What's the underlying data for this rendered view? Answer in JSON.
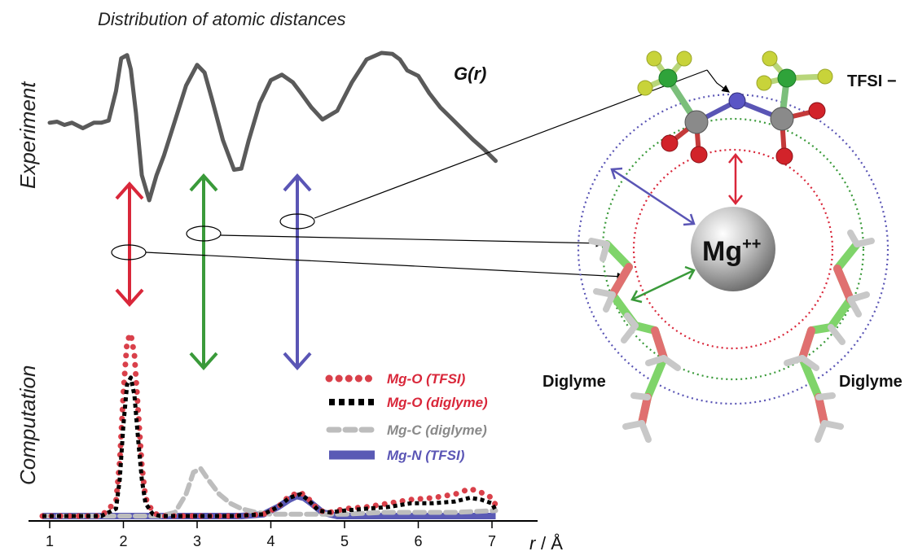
{
  "title": "Distribution of atomic distances",
  "experiment_label": "Experiment",
  "computation_label": "Computation",
  "gr_label": "G(r)",
  "tfsi_label": "TFSI −",
  "diglyme_left_label": "Diglyme",
  "diglyme_right_label": "Diglyme",
  "mg_label": "Mg",
  "mg_charge": "++",
  "axis": {
    "label_r": "r",
    "label_unit": " / Å"
  },
  "legend": [
    {
      "label": "Mg-O (TFSI)",
      "color": "#d9404a",
      "style": "dots"
    },
    {
      "label": "Mg-O (diglyme)",
      "color": "#000000",
      "style": "dots"
    },
    {
      "label": "Mg-C (diglyme)",
      "color": "#bdbdbd",
      "style": "dashes"
    },
    {
      "label": "Mg-N (TFSI)",
      "color": "#5a5ab5",
      "style": "solid"
    }
  ],
  "colors": {
    "red": "#d9273a",
    "green": "#3a9a3a",
    "blue": "#5a55b5",
    "gray_curve": "#5a5a5a"
  },
  "chart_data": {
    "type": "line",
    "xlim": [
      0.9,
      7.5
    ],
    "xticks": [
      1,
      2,
      3,
      4,
      5,
      6,
      7
    ],
    "xlabel": "r / Å",
    "experiment_series": {
      "name": "G(r)",
      "x": [
        1.0,
        1.1,
        1.2,
        1.3,
        1.45,
        1.6,
        1.7,
        1.8,
        1.9,
        1.97,
        2.05,
        2.1,
        2.17,
        2.25,
        2.35,
        2.45,
        2.55,
        2.7,
        2.85,
        3.0,
        3.1,
        3.2,
        3.35,
        3.5,
        3.6,
        3.7,
        3.85,
        4.0,
        4.15,
        4.3,
        4.4,
        4.55,
        4.7,
        4.9,
        5.1,
        5.3,
        5.5,
        5.65,
        5.75,
        5.85,
        6.0,
        6.15,
        6.3,
        6.45,
        6.6,
        6.75,
        6.9,
        7.05
      ],
      "y": [
        0.36,
        0.37,
        0.34,
        0.36,
        0.31,
        0.36,
        0.36,
        0.38,
        0.65,
        0.95,
        0.98,
        0.85,
        0.45,
        -0.12,
        -0.35,
        -0.12,
        0.06,
        0.38,
        0.7,
        0.89,
        0.82,
        0.58,
        0.2,
        -0.07,
        -0.06,
        0.2,
        0.54,
        0.75,
        0.8,
        0.73,
        0.64,
        0.5,
        0.39,
        0.47,
        0.73,
        0.94,
        1.0,
        0.99,
        0.94,
        0.84,
        0.79,
        0.63,
        0.5,
        0.4,
        0.3,
        0.2,
        0.11,
        0.01
      ]
    },
    "computation_series": [
      {
        "name": "Mg-O (TFSI)",
        "x": [
          0.9,
          1.7,
          1.9,
          1.95,
          2.0,
          2.05,
          2.1,
          2.15,
          2.2,
          2.25,
          2.3,
          2.4,
          2.5,
          3.0,
          3.5,
          3.9,
          4.1,
          4.25,
          4.4,
          4.5,
          4.65,
          4.8,
          5.0,
          5.3,
          5.6,
          5.9,
          6.2,
          6.5,
          6.7,
          6.85,
          7.0,
          7.05
        ],
        "y": [
          0.0,
          0.0,
          0.08,
          0.3,
          0.68,
          0.96,
          1.0,
          0.88,
          0.58,
          0.28,
          0.1,
          0.02,
          0.0,
          0.0,
          0.0,
          0.01,
          0.05,
          0.11,
          0.13,
          0.1,
          0.03,
          0.02,
          0.04,
          0.05,
          0.07,
          0.09,
          0.1,
          0.12,
          0.15,
          0.13,
          0.1,
          0.06
        ]
      },
      {
        "name": "Mg-O (diglyme)",
        "x": [
          0.9,
          1.7,
          1.9,
          1.95,
          2.0,
          2.05,
          2.1,
          2.15,
          2.2,
          2.25,
          2.3,
          2.4,
          2.5,
          3.0,
          3.5,
          3.9,
          4.1,
          4.25,
          4.4,
          4.5,
          4.65,
          4.8,
          5.0,
          5.3,
          5.6,
          5.9,
          6.2,
          6.5,
          6.7,
          6.85,
          7.0,
          7.05
        ],
        "y": [
          0.0,
          0.0,
          0.04,
          0.2,
          0.5,
          0.72,
          0.76,
          0.66,
          0.42,
          0.2,
          0.07,
          0.01,
          0.0,
          0.0,
          0.0,
          0.01,
          0.05,
          0.1,
          0.12,
          0.09,
          0.03,
          0.02,
          0.03,
          0.04,
          0.05,
          0.07,
          0.07,
          0.08,
          0.1,
          0.09,
          0.07,
          0.03
        ]
      },
      {
        "name": "Mg-C (diglyme)",
        "x": [
          0.9,
          2.5,
          2.7,
          2.85,
          2.95,
          3.05,
          3.15,
          3.3,
          3.45,
          3.6,
          3.8,
          4.0,
          4.5,
          5.0,
          5.5,
          6.0,
          6.5,
          7.05
        ],
        "y": [
          0.0,
          0.0,
          0.02,
          0.12,
          0.24,
          0.26,
          0.2,
          0.12,
          0.07,
          0.04,
          0.02,
          0.01,
          0.01,
          0.01,
          0.02,
          0.02,
          0.02,
          0.03
        ]
      },
      {
        "name": "Mg-N (TFSI)",
        "x": [
          0.9,
          3.6,
          3.9,
          4.1,
          4.25,
          4.35,
          4.45,
          4.55,
          4.7,
          4.9,
          5.2,
          7.05
        ],
        "y": [
          0.0,
          0.0,
          0.01,
          0.05,
          0.09,
          0.11,
          0.1,
          0.07,
          0.02,
          0.0,
          0.0,
          0.0
        ]
      }
    ]
  }
}
